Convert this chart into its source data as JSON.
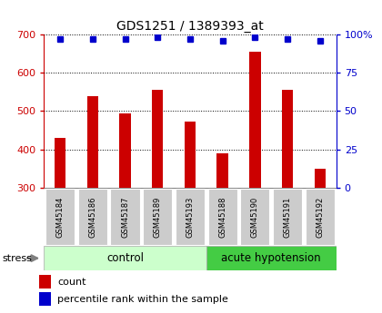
{
  "title": "GDS1251 / 1389393_at",
  "samples": [
    "GSM45184",
    "GSM45186",
    "GSM45187",
    "GSM45189",
    "GSM45193",
    "GSM45188",
    "GSM45190",
    "GSM45191",
    "GSM45192"
  ],
  "counts": [
    430,
    540,
    495,
    555,
    473,
    390,
    655,
    555,
    350
  ],
  "percentiles": [
    97,
    97,
    97,
    98,
    97,
    96,
    98,
    97,
    96
  ],
  "bar_color": "#cc0000",
  "dot_color": "#0000cc",
  "ylim_left": [
    300,
    700
  ],
  "ylim_right": [
    0,
    100
  ],
  "yticks_left": [
    300,
    400,
    500,
    600,
    700
  ],
  "yticks_right": [
    0,
    25,
    50,
    75,
    100
  ],
  "ytick_right_labels": [
    "0",
    "25",
    "50",
    "75",
    "100%"
  ],
  "n_control": 5,
  "n_acute": 4,
  "control_label": "control",
  "acute_label": "acute hypotension",
  "stress_label": "stress",
  "legend_count": "count",
  "legend_percentile": "percentile rank within the sample",
  "bar_color_red": "#cc0000",
  "dot_color_blue": "#0000cc",
  "group_color_control": "#ccffcc",
  "group_color_acute": "#44cc44",
  "tick_bg_color": "#cccccc",
  "fig_width": 4.2,
  "fig_height": 3.45,
  "dpi": 100
}
